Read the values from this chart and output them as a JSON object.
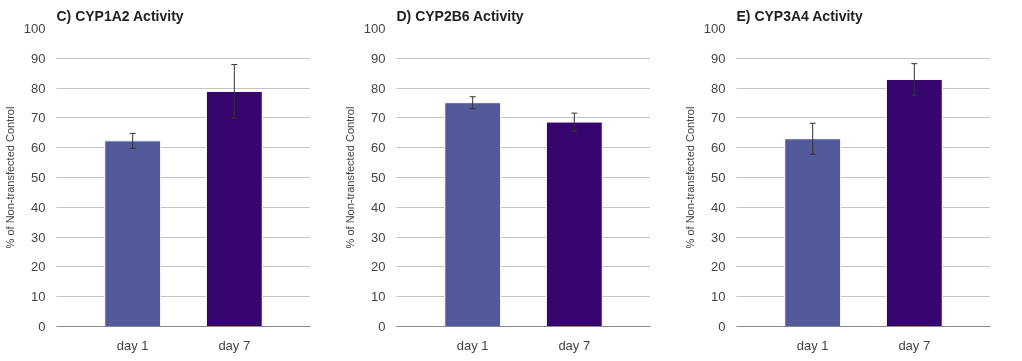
{
  "chart_data": [
    {
      "type": "bar",
      "title": "C) CYP1A2 Activity",
      "ylabel": "% of Non-transfected Control",
      "categories": [
        "day 1",
        "day 7"
      ],
      "values": [
        62.3,
        78.9
      ],
      "errors": [
        2.5,
        9
      ],
      "colors": [
        "#525a9c",
        "#36066e"
      ],
      "ylim": [
        0,
        100
      ],
      "yticks": [
        0,
        10,
        20,
        30,
        40,
        50,
        60,
        70,
        80,
        90,
        100
      ],
      "grid": "y"
    },
    {
      "type": "bar",
      "title": "D) CYP2B6 Activity",
      "ylabel": "% of Non-transfected Control",
      "categories": [
        "day 1",
        "day 7"
      ],
      "values": [
        75.1,
        68.6
      ],
      "errors": [
        2,
        3
      ],
      "colors": [
        "#525a9c",
        "#36066e"
      ],
      "ylim": [
        0,
        100
      ],
      "yticks": [
        0,
        10,
        20,
        30,
        40,
        50,
        60,
        70,
        80,
        90,
        100
      ],
      "grid": "y"
    },
    {
      "type": "bar",
      "title": "E) CYP3A4 Activity",
      "ylabel": "% of Non-transfected Control",
      "categories": [
        "day 1",
        "day 7"
      ],
      "values": [
        63,
        82.9
      ],
      "errors": [
        5.2,
        5.3
      ],
      "colors": [
        "#525a9c",
        "#36066e"
      ],
      "ylim": [
        0,
        100
      ],
      "yticks": [
        0,
        10,
        20,
        30,
        40,
        50,
        60,
        70,
        80,
        90,
        100
      ],
      "grid": "y"
    }
  ]
}
